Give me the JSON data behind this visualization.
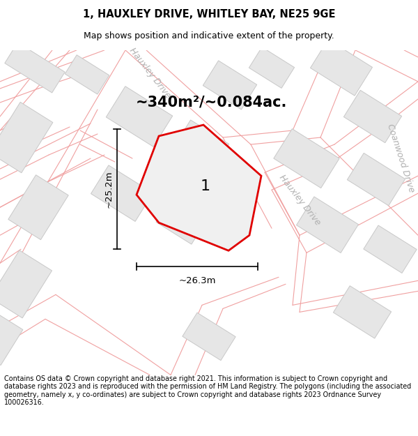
{
  "title": "1, HAUXLEY DRIVE, WHITLEY BAY, NE25 9GE",
  "subtitle": "Map shows position and indicative extent of the property.",
  "footer": "Contains OS data © Crown copyright and database right 2021. This information is subject to Crown copyright and database rights 2023 and is reproduced with the permission of HM Land Registry. The polygons (including the associated geometry, namely x, y co-ordinates) are subject to Crown copyright and database rights 2023 Ordnance Survey 100026316.",
  "area_text": "~340m²/~0.084ac.",
  "width_text": "~26.3m",
  "height_text": "~25.2m",
  "property_label": "1",
  "map_bg": "#f7f7f7",
  "building_fill": "#e6e6e6",
  "building_stroke": "#c8c8c8",
  "red_line_color": "#e00000",
  "pink_road_color": "#f0a0a0",
  "road_label_color": "#b0b0b0",
  "title_fontsize": 10.5,
  "subtitle_fontsize": 9,
  "footer_fontsize": 6.9,
  "label_fontsize": 16,
  "area_fontsize": 15,
  "dim_fontsize": 9.5,
  "road_label_fontsize": 9
}
